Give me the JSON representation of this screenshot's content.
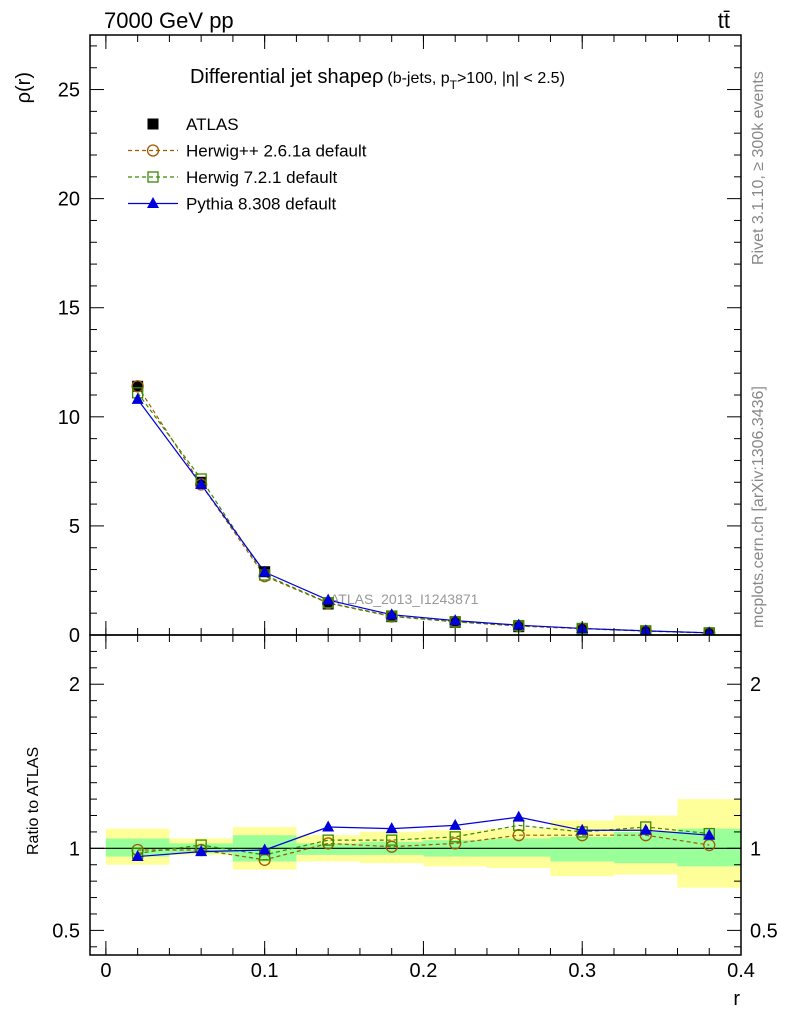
{
  "header": {
    "energy_label": "7000 GeV pp",
    "process_label": "tt̄",
    "side_rivet": "Rivet 3.1.10, ≥ 300k events",
    "side_mcplots": "mcplots.cern.ch [arXiv:1306.3436]"
  },
  "chart_data": [
    {
      "type": "line",
      "title": "Differential jet shape",
      "title_extra": "ρ (b-jets, pT>100, |η| < 2.5)",
      "title_rho": "ρ",
      "title_cond_pre": "(b-jets, p",
      "title_cond_sub": "T",
      "title_cond_post": ">100, |η| < 2.5)",
      "ylabel": "ρ(r)",
      "xlabel": "r",
      "xlim": [
        -0.01,
        0.4
      ],
      "ylim": [
        0,
        27.5
      ],
      "yticks": [
        0,
        5,
        10,
        15,
        20,
        25
      ],
      "watermark": "ATLAS_2013_I1243871",
      "legend_position": "top-left",
      "x": [
        0.02,
        0.06,
        0.1,
        0.14,
        0.18,
        0.22,
        0.26,
        0.3,
        0.34,
        0.38
      ],
      "series": [
        {
          "name": "ATLAS",
          "color": "#000000",
          "marker": "square-filled",
          "values": [
            11.4,
            7.0,
            2.9,
            1.42,
            0.84,
            0.58,
            0.38,
            0.27,
            0.17,
            0.09
          ]
        },
        {
          "name": "Herwig++ 2.6.1a default",
          "color": "#a05a00",
          "marker": "circle-open",
          "values": [
            11.4,
            6.9,
            2.7,
            1.46,
            0.85,
            0.6,
            0.41,
            0.29,
            0.18,
            0.09
          ]
        },
        {
          "name": "Herwig 7.2.1 default",
          "color": "#3a8a00",
          "marker": "square-open",
          "values": [
            11.1,
            7.15,
            2.75,
            1.48,
            0.87,
            0.61,
            0.43,
            0.3,
            0.19,
            0.1
          ]
        },
        {
          "name": "Pythia 8.308 default",
          "color": "#0000dd",
          "marker": "triangle-filled",
          "values": [
            10.8,
            6.9,
            2.88,
            1.6,
            0.93,
            0.66,
            0.45,
            0.3,
            0.19,
            0.1
          ]
        }
      ]
    },
    {
      "type": "line",
      "ylabel": "Ratio to ATLAS",
      "xlabel": "r",
      "xlim": [
        -0.01,
        0.4
      ],
      "ylim": [
        0.35,
        2.3
      ],
      "yticks": [
        0.5,
        1,
        2
      ],
      "xticks": [
        0,
        0.1,
        0.2,
        0.3,
        0.4
      ],
      "reference_line": 1,
      "bin_edges": [
        0,
        0.04,
        0.08,
        0.12,
        0.16,
        0.2,
        0.24,
        0.28,
        0.32,
        0.36,
        0.4
      ],
      "band_inner": {
        "color": "#99ff99",
        "low": [
          0.95,
          0.97,
          0.92,
          0.96,
          0.96,
          0.95,
          0.95,
          0.92,
          0.91,
          0.89
        ],
        "high": [
          1.06,
          1.03,
          1.08,
          1.03,
          1.04,
          1.05,
          1.06,
          1.07,
          1.1,
          1.12
        ]
      },
      "band_outer": {
        "color": "#ffff99",
        "low": [
          0.9,
          0.96,
          0.87,
          0.92,
          0.91,
          0.89,
          0.88,
          0.83,
          0.84,
          0.76
        ],
        "high": [
          1.12,
          1.06,
          1.13,
          1.08,
          1.1,
          1.11,
          1.12,
          1.17,
          1.2,
          1.3
        ]
      },
      "x": [
        0.02,
        0.06,
        0.1,
        0.14,
        0.18,
        0.22,
        0.26,
        0.3,
        0.34,
        0.38
      ],
      "series": [
        {
          "name": "Herwig++ 2.6.1a default",
          "color": "#a05a00",
          "marker": "circle-open",
          "values": [
            0.99,
            0.99,
            0.93,
            1.03,
            1.01,
            1.03,
            1.08,
            1.08,
            1.08,
            1.02
          ]
        },
        {
          "name": "Herwig 7.2.1 default",
          "color": "#3a8a00",
          "marker": "square-open",
          "values": [
            0.97,
            1.02,
            0.96,
            1.05,
            1.05,
            1.07,
            1.14,
            1.1,
            1.13,
            1.09
          ]
        },
        {
          "name": "Pythia 8.308 default",
          "color": "#0000dd",
          "marker": "triangle-filled",
          "values": [
            0.95,
            0.98,
            0.99,
            1.13,
            1.12,
            1.14,
            1.19,
            1.11,
            1.11,
            1.08
          ]
        }
      ]
    }
  ]
}
